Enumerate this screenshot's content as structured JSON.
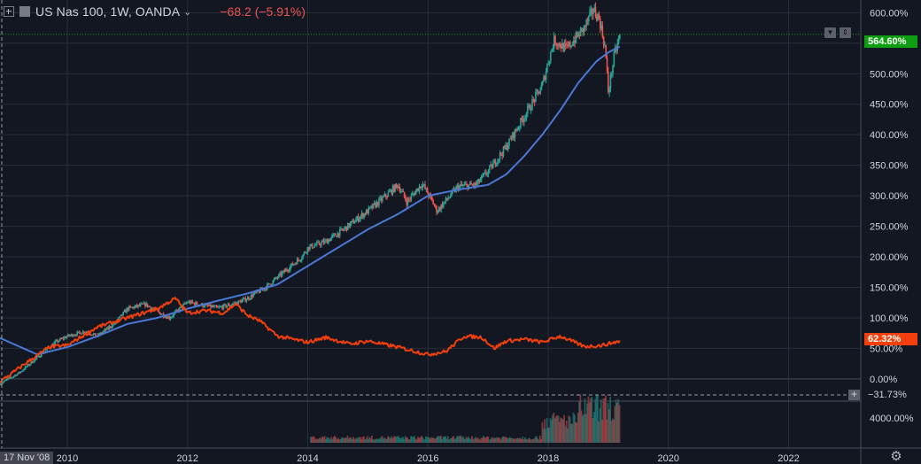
{
  "header": {
    "title": "US Nas 100, 1W, OANDA",
    "change": "−68.2 (−5.91%)"
  },
  "colors": {
    "background": "#131722",
    "grid": "#2a2e39",
    "candle_up": "#26a69a",
    "candle_down": "#ef5350",
    "ma_line": "#4a78d6",
    "compare_line": "#f23f0c",
    "last_price_line": "#1e9e1e"
  },
  "price_tags": {
    "last": "564.60%",
    "compare": "62.32%",
    "low": "−31.73%"
  },
  "crosshair_date": "17 Nov '08",
  "chart_data": {
    "type": "line",
    "title": "US Nas 100, 1W, OANDA",
    "y_scale": "percent",
    "ylim": [
      -35,
      615
    ],
    "xlim": [
      2008.88,
      2023.2
    ],
    "y_ticks": [
      "600.00%",
      "550.00%",
      "500.00%",
      "450.00%",
      "400.00%",
      "350.00%",
      "300.00%",
      "250.00%",
      "200.00%",
      "150.00%",
      "100.00%",
      "50.00%",
      "0.00%"
    ],
    "x_ticks": [
      "2010",
      "2012",
      "2014",
      "2016",
      "2018",
      "2020",
      "2022"
    ],
    "volume_axis_label": "4000.00%",
    "series": [
      {
        "name": "US Nas 100",
        "style": "candles",
        "x": [
          2008.88,
          2009.2,
          2009.5,
          2009.8,
          2010.0,
          2010.3,
          2010.5,
          2010.8,
          2011.0,
          2011.3,
          2011.5,
          2011.7,
          2012.0,
          2012.2,
          2012.5,
          2012.8,
          2013.0,
          2013.3,
          2013.6,
          2013.9,
          2014.0,
          2014.3,
          2014.6,
          2014.9,
          2015.0,
          2015.3,
          2015.5,
          2015.65,
          2015.9,
          2016.05,
          2016.15,
          2016.5,
          2016.8,
          2017.0,
          2017.3,
          2017.6,
          2017.9,
          2018.0,
          2018.1,
          2018.3,
          2018.6,
          2018.75,
          2018.85,
          2018.95,
          2019.0,
          2019.1,
          2019.2
        ],
        "y": [
          -8,
          10,
          35,
          60,
          70,
          78,
          70,
          92,
          115,
          122,
          110,
          100,
          126,
          122,
          116,
          124,
          132,
          150,
          175,
          200,
          215,
          225,
          245,
          268,
          275,
          300,
          318,
          290,
          320,
          295,
          275,
          315,
          318,
          340,
          380,
          430,
          480,
          520,
          555,
          540,
          575,
          605,
          590,
          540,
          470,
          530,
          564.6
        ]
      },
      {
        "name": "Moving average",
        "style": "line",
        "x": [
          2008.88,
          2009.5,
          2010.0,
          2010.5,
          2011.0,
          2011.5,
          2012.0,
          2012.5,
          2013.0,
          2013.5,
          2014.0,
          2014.5,
          2015.0,
          2015.5,
          2016.0,
          2016.5,
          2017.0,
          2017.3,
          2017.6,
          2017.9,
          2018.2,
          2018.5,
          2018.8,
          2019.0,
          2019.2
        ],
        "y": [
          67,
          40,
          52,
          70,
          90,
          100,
          115,
          128,
          140,
          155,
          185,
          215,
          245,
          270,
          300,
          310,
          318,
          335,
          365,
          400,
          440,
          485,
          520,
          535,
          545
        ]
      },
      {
        "name": "Comparison",
        "style": "line",
        "x": [
          2008.88,
          2009.3,
          2009.7,
          2010.0,
          2010.5,
          2011.0,
          2011.5,
          2011.8,
          2012.0,
          2012.3,
          2012.6,
          2012.8,
          2013.0,
          2013.2,
          2013.5,
          2014.0,
          2014.3,
          2014.7,
          2015.0,
          2015.5,
          2016.0,
          2016.3,
          2016.6,
          2016.9,
          2017.1,
          2017.3,
          2017.6,
          2017.9,
          2018.2,
          2018.6,
          2018.9,
          2019.2
        ],
        "y": [
          -5,
          25,
          52,
          55,
          85,
          100,
          115,
          132,
          108,
          112,
          108,
          123,
          104,
          95,
          70,
          60,
          68,
          57,
          62,
          52,
          40,
          45,
          70,
          68,
          50,
          62,
          65,
          60,
          70,
          53,
          55,
          62.3
        ]
      }
    ]
  }
}
